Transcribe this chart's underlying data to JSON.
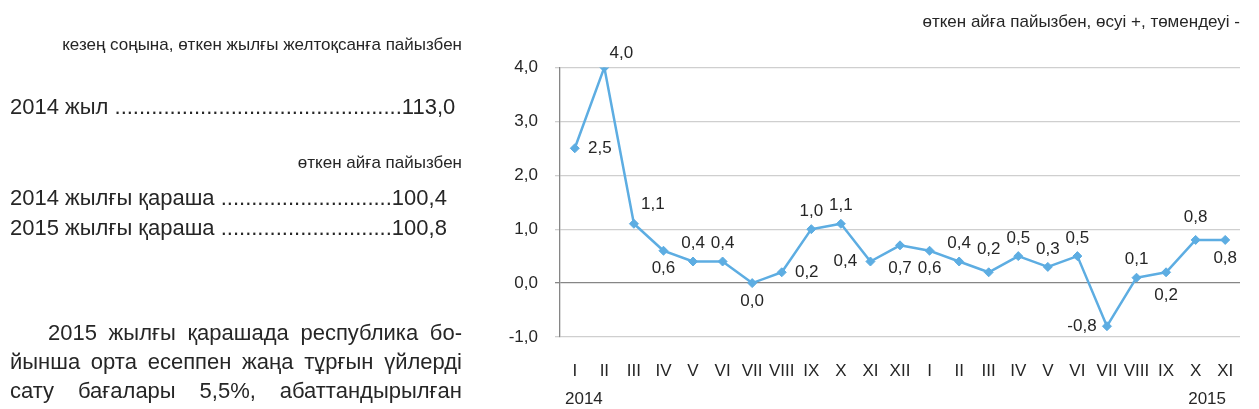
{
  "chart_data": [
    {
      "type": "other",
      "annotations": [
        "кезең соңына, өткен жылғы желтоқсанға пайызбен",
        "2014 жыл ...............................................113,0",
        "өткен айға пайызбен",
        "2014 жылғы қараша ............................100,4",
        "2015 жылғы қараша ............................100,8",
        "2015 жылғы қарашада республика бо-",
        "йынша орта есеппен жаңа тұрғын үйлерді",
        "сату бағалары 5,5%, абаттандырылған"
      ]
    },
    {
      "type": "line",
      "title": "өткен айға пайызбен, өсуі +, төмендеуі -",
      "categories": [
        "I",
        "II",
        "III",
        "IV",
        "V",
        "VI",
        "VII",
        "VIII",
        "IX",
        "X",
        "XI",
        "XII",
        "I",
        "II",
        "III",
        "IV",
        "V",
        "VI",
        "VII",
        "VIII",
        "IX",
        "X",
        "XI"
      ],
      "series": [
        {
          "color": "#5dade2",
          "values": [
            2.5,
            4.0,
            1.1,
            0.6,
            0.4,
            0.4,
            0.0,
            0.2,
            1.0,
            1.1,
            0.4,
            0.7,
            0.6,
            0.4,
            0.2,
            0.5,
            0.3,
            0.5,
            -0.8,
            0.1,
            0.2,
            0.8,
            0.8
          ],
          "value_labels": [
            "2,5",
            "4,0",
            "1,1",
            "0,6",
            "0,4",
            "0,4",
            "0,0",
            "0,2",
            "1,0",
            "1,1",
            "0,4",
            "0,7",
            "0,6",
            "0,4",
            "0,2",
            "0,5",
            "0,3",
            "0,5",
            "-0,8",
            "0,1",
            "0,2",
            "0,8",
            "0,8"
          ]
        }
      ],
      "ylim": [
        -1,
        4
      ],
      "yticks": [
        {
          "value": -1,
          "label": "-1,0"
        },
        {
          "value": 0,
          "label": "0,0"
        },
        {
          "value": 1,
          "label": "1,0"
        },
        {
          "value": 2,
          "label": "2,0"
        },
        {
          "value": 3,
          "label": "3,0"
        },
        {
          "value": 4,
          "label": "4,0"
        }
      ],
      "grid": "y",
      "marker": "diamond",
      "line_style": "solid",
      "annotations": [
        "2014",
        "2015"
      ]
    }
  ]
}
